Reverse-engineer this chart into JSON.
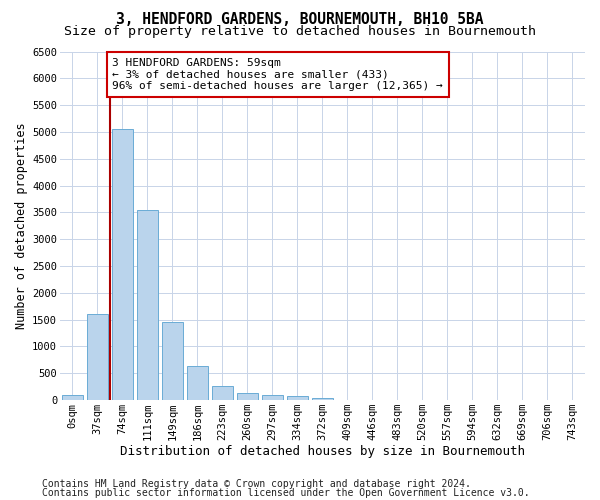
{
  "title": "3, HENDFORD GARDENS, BOURNEMOUTH, BH10 5BA",
  "subtitle": "Size of property relative to detached houses in Bournemouth",
  "xlabel": "Distribution of detached houses by size in Bournemouth",
  "ylabel": "Number of detached properties",
  "categories": [
    "0sqm",
    "37sqm",
    "74sqm",
    "111sqm",
    "149sqm",
    "186sqm",
    "223sqm",
    "260sqm",
    "297sqm",
    "334sqm",
    "372sqm",
    "409sqm",
    "446sqm",
    "483sqm",
    "520sqm",
    "557sqm",
    "594sqm",
    "632sqm",
    "669sqm",
    "706sqm",
    "743sqm"
  ],
  "values": [
    100,
    1600,
    5050,
    3550,
    1450,
    630,
    270,
    130,
    100,
    70,
    30,
    10,
    10,
    5,
    5,
    5,
    5,
    0,
    0,
    0,
    0
  ],
  "bar_color": "#bad4ec",
  "bar_edge_color": "#6aacd6",
  "vline_x": 1.5,
  "vline_color": "#aa0000",
  "annotation_text": "3 HENDFORD GARDENS: 59sqm\n← 3% of detached houses are smaller (433)\n96% of semi-detached houses are larger (12,365) →",
  "annotation_box_color": "#ffffff",
  "annotation_box_edge_color": "#cc0000",
  "ylim": [
    0,
    6500
  ],
  "yticks": [
    0,
    500,
    1000,
    1500,
    2000,
    2500,
    3000,
    3500,
    4000,
    4500,
    5000,
    5500,
    6000,
    6500
  ],
  "footer1": "Contains HM Land Registry data © Crown copyright and database right 2024.",
  "footer2": "Contains public sector information licensed under the Open Government Licence v3.0.",
  "bg_color": "#ffffff",
  "grid_color": "#c8d4e8",
  "title_fontsize": 10.5,
  "subtitle_fontsize": 9.5,
  "xlabel_fontsize": 9,
  "ylabel_fontsize": 8.5,
  "tick_fontsize": 7.5,
  "annotation_fontsize": 8,
  "footer_fontsize": 7
}
